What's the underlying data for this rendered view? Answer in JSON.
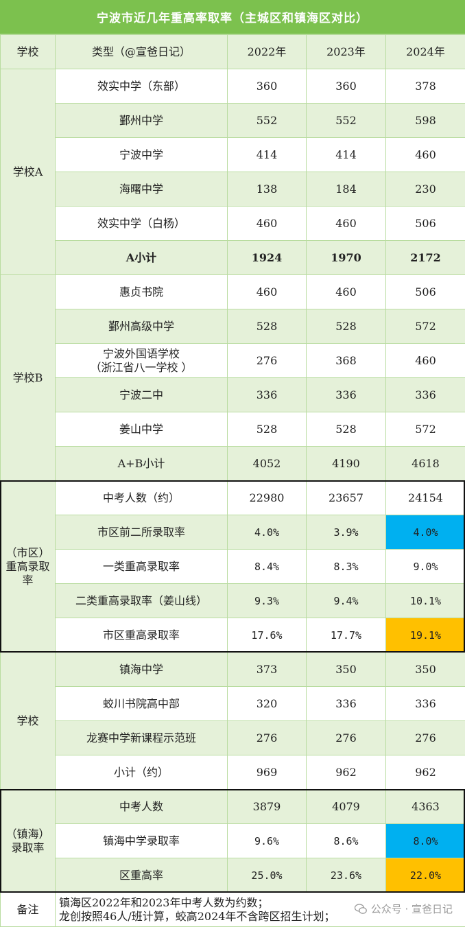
{
  "title": "宁波市近几年重高率取率（主城区和镇海区对比）",
  "header": {
    "school": "学校",
    "type": "类型（@宣爸日记）",
    "y1": "2022年",
    "y2": "2023年",
    "y3": "2024年"
  },
  "groupA": {
    "label": "学校A",
    "rows": [
      {
        "name": "效实中学（东部）",
        "v1": "360",
        "v2": "360",
        "v3": "378"
      },
      {
        "name": "鄞州中学",
        "v1": "552",
        "v2": "552",
        "v3": "598"
      },
      {
        "name": "宁波中学",
        "v1": "414",
        "v2": "414",
        "v3": "460"
      },
      {
        "name": "海曙中学",
        "v1": "138",
        "v2": "184",
        "v3": "230"
      },
      {
        "name": "效实中学（白杨）",
        "v1": "460",
        "v2": "460",
        "v3": "506"
      }
    ],
    "subtotal": {
      "name": "A小计",
      "v1": "1924",
      "v2": "1970",
      "v3": "2172"
    }
  },
  "groupB": {
    "label": "学校B",
    "rows": [
      {
        "name": "惠贞书院",
        "v1": "460",
        "v2": "460",
        "v3": "506"
      },
      {
        "name": "鄞州高级中学",
        "v1": "528",
        "v2": "528",
        "v3": "572"
      },
      {
        "name1": "宁波外国语学校",
        "name2": "（浙江省八一学校 ）",
        "v1": "276",
        "v2": "368",
        "v3": "460"
      },
      {
        "name": "宁波二中",
        "v1": "336",
        "v2": "336",
        "v3": "336"
      },
      {
        "name": "姜山中学",
        "v1": "528",
        "v2": "528",
        "v3": "572"
      }
    ],
    "subtotal": {
      "name": "A+B小计",
      "v1": "4052",
      "v2": "4190",
      "v3": "4618"
    }
  },
  "city": {
    "label1": "（市区）",
    "label2": "重高录取",
    "label3": "率",
    "rows": [
      {
        "name": "中考人数（约）",
        "v1": "22980",
        "v2": "23657",
        "v3": "24154"
      },
      {
        "name": "市区前二所录取率",
        "v1": "4.0%",
        "v2": "3.9%",
        "v3": "4.0%"
      },
      {
        "name": "一类重高录取率",
        "v1": "8.4%",
        "v2": "8.3%",
        "v3": "9.0%"
      },
      {
        "name": "二类重高录取率（姜山线）",
        "v1": "9.3%",
        "v2": "9.4%",
        "v3": "10.1%"
      },
      {
        "name": "市区重高录取率",
        "v1": "17.6%",
        "v2": "17.7%",
        "v3": "19.1%"
      }
    ]
  },
  "zhenhai_school": {
    "label": "学校",
    "rows": [
      {
        "name": "镇海中学",
        "v1": "373",
        "v2": "350",
        "v3": "350"
      },
      {
        "name": "蛟川书院高中部",
        "v1": "320",
        "v2": "336",
        "v3": "336"
      },
      {
        "name": "龙赛中学新课程示范班",
        "v1": "276",
        "v2": "276",
        "v3": "276"
      },
      {
        "name": "小计（约）",
        "v1": "969",
        "v2": "962",
        "v3": "962"
      }
    ]
  },
  "zhenhai_rate": {
    "label1": "（镇海）",
    "label2": "录取率",
    "rows": [
      {
        "name": "中考人数",
        "v1": "3879",
        "v2": "4079",
        "v3": "4363"
      },
      {
        "name": "镇海中学录取率",
        "v1": "9.6%",
        "v2": "8.6%",
        "v3": "8.0%"
      },
      {
        "name": "区重高率",
        "v1": "25.0%",
        "v2": "23.6%",
        "v3": "22.0%"
      }
    ]
  },
  "note": {
    "label": "备注",
    "line1": "镇海区2022年和2023年中考人数为约数；",
    "line2": "龙创按照46人/班计算，蛟高2024年不含跨区招生计划；"
  },
  "watermark": "公众号 · 宣爸日记",
  "colors": {
    "title_bg": "#7cc14e",
    "row_green": "#e5f1d9",
    "highlight_blue": "#00b0f0",
    "highlight_orange": "#ffc000"
  }
}
